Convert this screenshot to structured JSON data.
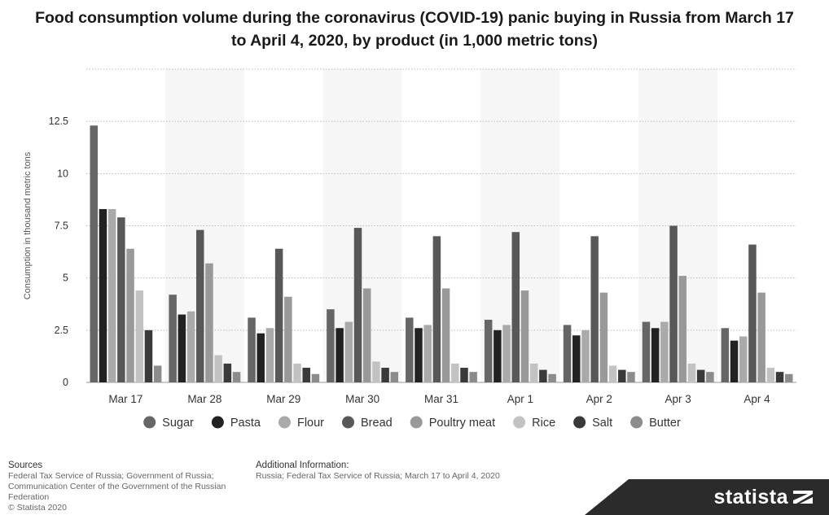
{
  "chart_data": {
    "type": "bar",
    "title": "Food consumption volume during the coronavirus (COVID-19) panic buying in Russia from March 17 to April 4, 2020, by product (in 1,000 metric tons)",
    "xlabel": "",
    "ylabel": "Consumption in thousand metric tons",
    "ylim": [
      0,
      15
    ],
    "yticks": [
      0,
      2.5,
      5,
      7.5,
      10,
      12.5
    ],
    "ytick_labels": [
      "0",
      "2.5",
      "5",
      "7.5",
      "10",
      "12.5"
    ],
    "grid": true,
    "legend_position": "bottom",
    "categories": [
      "Mar 17",
      "Mar 28",
      "Mar 29",
      "Mar 30",
      "Mar 31",
      "Apr 1",
      "Apr 2",
      "Apr 3",
      "Apr 4"
    ],
    "series": [
      {
        "name": "Sugar",
        "color": "#666666",
        "values": [
          12.3,
          4.2,
          3.1,
          3.5,
          3.1,
          3.0,
          2.75,
          2.9,
          2.6
        ]
      },
      {
        "name": "Pasta",
        "color": "#222222",
        "values": [
          8.3,
          3.25,
          2.35,
          2.6,
          2.6,
          2.5,
          2.25,
          2.6,
          2.0
        ]
      },
      {
        "name": "Flour",
        "color": "#aaaaaa",
        "values": [
          8.3,
          3.4,
          2.6,
          2.9,
          2.75,
          2.75,
          2.5,
          2.9,
          2.2
        ]
      },
      {
        "name": "Bread",
        "color": "#585858",
        "values": [
          7.9,
          7.3,
          6.4,
          7.4,
          7.0,
          7.2,
          7.0,
          7.5,
          6.6
        ]
      },
      {
        "name": "Poultry meat",
        "color": "#999999",
        "values": [
          6.4,
          5.7,
          4.1,
          4.5,
          4.5,
          4.4,
          4.3,
          5.1,
          4.3
        ]
      },
      {
        "name": "Rice",
        "color": "#c2c2c2",
        "values": [
          4.4,
          1.3,
          0.9,
          1.0,
          0.9,
          0.9,
          0.8,
          0.9,
          0.7
        ]
      },
      {
        "name": "Salt",
        "color": "#3a3a3a",
        "values": [
          2.5,
          0.9,
          0.7,
          0.7,
          0.7,
          0.6,
          0.6,
          0.6,
          0.5
        ]
      },
      {
        "name": "Butter",
        "color": "#8c8c8c",
        "values": [
          0.8,
          0.5,
          0.4,
          0.5,
          0.5,
          0.4,
          0.5,
          0.5,
          0.4
        ]
      }
    ]
  },
  "footer": {
    "sources_title": "Sources",
    "sources_text": "Federal Tax Service of Russia; Government of Russia; Communication Center of the Government of the Russian Federation",
    "copyright": "© Statista 2020",
    "additional_title": "Additional Information:",
    "additional_text": "Russia; Federal Tax Service of Russia; March 17 to April 4, 2020"
  },
  "brand": {
    "name": "statista"
  }
}
